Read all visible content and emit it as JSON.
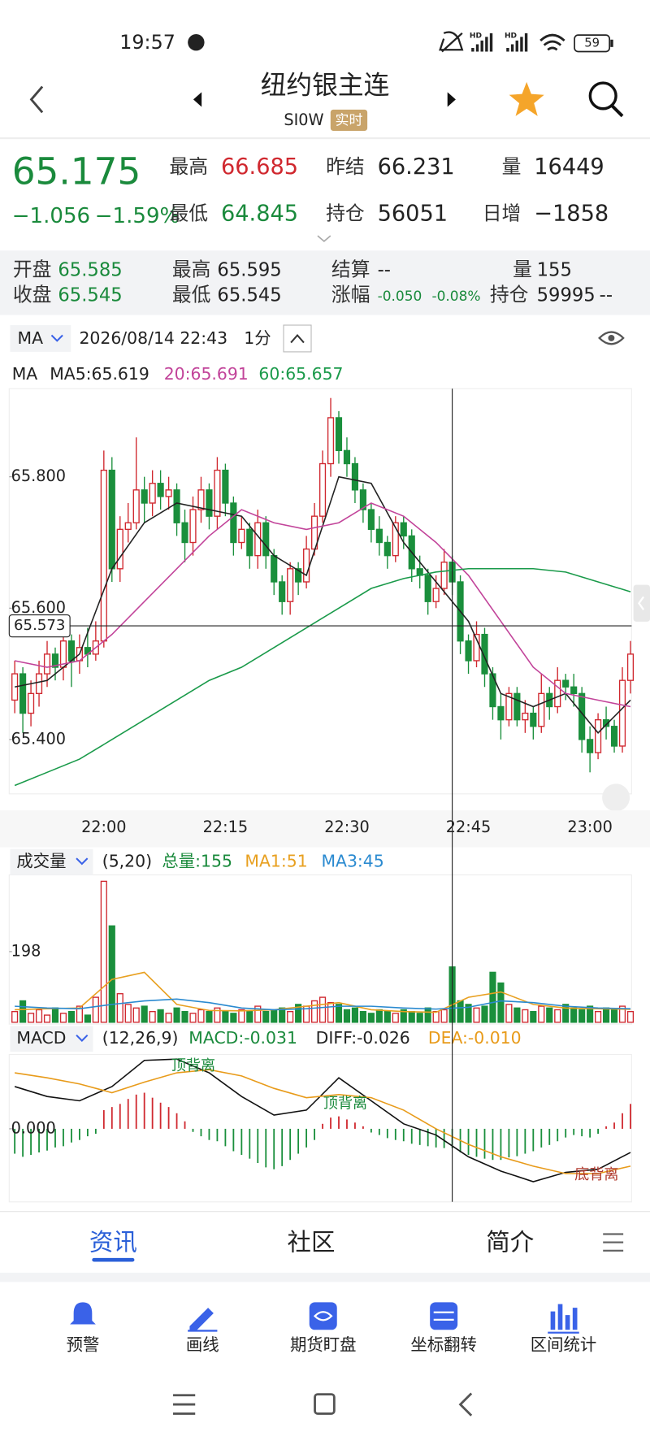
{
  "status_bar": {
    "time": "19:57",
    "hd": "HD",
    "battery": "59"
  },
  "header": {
    "title": "纽约银主连",
    "code": "SI0W",
    "badge": "实时"
  },
  "quote": {
    "price": "65.175",
    "change": "−1.056",
    "change_pct": "−1.59%",
    "items": [
      {
        "label": "最高",
        "value": "66.685"
      },
      {
        "label": "昨结",
        "value": "66.231"
      },
      {
        "label": "量",
        "value": "16449"
      },
      {
        "label": "最低",
        "value": "64.845"
      },
      {
        "label": "持仓",
        "value": "56051"
      },
      {
        "label": "日增",
        "value": "−1858"
      }
    ]
  },
  "detail": {
    "items": [
      {
        "label": "开盘",
        "value": "65.585"
      },
      {
        "label": "最高",
        "value": "65.595"
      },
      {
        "label": "结算",
        "value": "--"
      },
      {
        "label": "量",
        "value": "155"
      },
      {
        "label": "收盘",
        "value": "65.545"
      },
      {
        "label": "最低",
        "value": "65.545"
      },
      {
        "label": "涨幅",
        "value": "-0.050",
        "extra": "-0.08%"
      },
      {
        "label": "持仓",
        "value": "59995",
        "extra": "--"
      }
    ]
  },
  "toolbar": {
    "indicator": "MA",
    "datetime": "2026/08/14 22:43",
    "period": "1分"
  },
  "ma_legend": {
    "label": "MA",
    "ma5": "MA5:65.619",
    "ma20": "20:65.691",
    "ma60": "60:65.657"
  },
  "volume_header": {
    "indicator": "成交量",
    "params": "(5,20)",
    "total": "总量:155",
    "ma1": "MA1:51",
    "ma3": "MA3:45"
  },
  "macd_header": {
    "indicator": "MACD",
    "params": "(12,26,9)",
    "macd": "MACD:-0.031",
    "diff": "DIFF:-0.026",
    "dea": "DEA:-0.010"
  },
  "tabs": [
    "资讯",
    "社区",
    "简介"
  ],
  "tools": [
    "预警",
    "画线",
    "期货盯盘",
    "坐标翻转",
    "区间统计"
  ],
  "chart_data": [
    {
      "type": "candlestick",
      "categories": [
        null,
        null,
        null,
        null,
        null,
        null,
        null,
        null,
        null,
        null,
        null,
        "22:00",
        null,
        null,
        null,
        null,
        null,
        null,
        null,
        null,
        null,
        null,
        null,
        null,
        null,
        null,
        "22:15",
        null,
        null,
        null,
        null,
        null,
        null,
        null,
        null,
        null,
        null,
        null,
        null,
        null,
        null,
        "22:30",
        null,
        null,
        null,
        null,
        null,
        null,
        null,
        null,
        null,
        null,
        null,
        null,
        null,
        null,
        "22:45",
        null,
        null,
        null,
        null,
        null,
        null,
        null,
        null,
        null,
        null,
        null,
        null,
        null,
        null,
        "23:00",
        null,
        null,
        null,
        null,
        null
      ],
      "open": [
        65.46,
        65.5,
        65.44,
        65.47,
        65.5,
        65.53,
        65.51,
        65.55,
        65.52,
        65.54,
        65.53,
        65.55,
        65.81,
        65.66,
        65.72,
        65.73,
        65.78,
        65.76,
        65.79,
        65.77,
        65.78,
        65.73,
        65.7,
        65.75,
        65.78,
        65.74,
        65.81,
        65.76,
        65.7,
        65.72,
        65.68,
        65.73,
        65.68,
        65.64,
        65.61,
        65.66,
        65.64,
        65.69,
        65.74,
        65.82,
        65.89,
        65.84,
        65.82,
        65.78,
        65.75,
        65.72,
        65.7,
        65.68,
        65.73,
        65.71,
        65.66,
        65.65,
        65.61,
        65.63,
        65.67,
        65.64,
        65.55,
        65.52,
        65.56,
        65.5,
        65.45,
        65.43,
        65.47,
        65.43,
        65.44,
        65.42,
        65.47,
        65.45,
        65.49,
        65.48,
        65.47,
        65.4,
        65.38,
        65.43,
        65.42,
        65.39,
        65.49
      ],
      "high": [
        65.52,
        65.51,
        65.49,
        65.52,
        65.55,
        65.54,
        65.57,
        65.56,
        65.56,
        65.57,
        65.58,
        65.84,
        65.83,
        65.74,
        65.76,
        65.86,
        65.8,
        65.81,
        65.81,
        65.8,
        65.79,
        65.75,
        65.77,
        65.8,
        65.79,
        65.83,
        65.82,
        65.77,
        65.74,
        65.73,
        65.75,
        65.74,
        65.69,
        65.65,
        65.67,
        65.67,
        65.71,
        65.76,
        65.84,
        65.92,
        65.9,
        65.86,
        65.83,
        65.79,
        65.76,
        65.74,
        65.71,
        65.74,
        65.74,
        65.72,
        65.68,
        65.66,
        65.65,
        65.69,
        65.68,
        65.65,
        65.56,
        65.58,
        65.57,
        65.51,
        65.47,
        65.48,
        65.48,
        65.46,
        65.45,
        65.5,
        65.48,
        65.51,
        65.5,
        65.5,
        65.48,
        65.42,
        65.44,
        65.45,
        65.43,
        65.51,
        65.55
      ],
      "low": [
        65.44,
        65.41,
        65.42,
        65.45,
        65.48,
        65.49,
        65.49,
        65.48,
        65.5,
        65.51,
        65.52,
        65.54,
        65.64,
        65.64,
        65.7,
        65.72,
        65.73,
        65.74,
        65.75,
        65.75,
        65.71,
        65.67,
        65.68,
        65.73,
        65.72,
        65.72,
        65.74,
        65.68,
        65.69,
        65.66,
        65.66,
        65.66,
        65.62,
        65.59,
        65.59,
        65.62,
        65.63,
        65.68,
        65.73,
        65.8,
        65.82,
        65.8,
        65.76,
        65.73,
        65.7,
        65.68,
        65.66,
        65.67,
        65.69,
        65.64,
        65.63,
        65.59,
        65.6,
        65.62,
        65.62,
        65.53,
        65.5,
        65.51,
        65.48,
        65.43,
        65.4,
        65.42,
        65.42,
        65.41,
        65.4,
        65.41,
        65.43,
        65.44,
        65.46,
        65.45,
        65.38,
        65.35,
        65.37,
        65.4,
        65.38,
        65.38,
        65.47
      ],
      "close": [
        65.5,
        65.44,
        65.47,
        65.5,
        65.53,
        65.51,
        65.55,
        65.52,
        65.54,
        65.53,
        65.55,
        65.81,
        65.66,
        65.72,
        65.73,
        65.78,
        65.76,
        65.79,
        65.77,
        65.78,
        65.73,
        65.7,
        65.75,
        65.78,
        65.74,
        65.81,
        65.76,
        65.7,
        65.72,
        65.68,
        65.73,
        65.68,
        65.64,
        65.61,
        65.66,
        65.64,
        65.69,
        65.74,
        65.82,
        65.89,
        65.84,
        65.82,
        65.78,
        65.75,
        65.72,
        65.7,
        65.68,
        65.73,
        65.71,
        65.66,
        65.65,
        65.61,
        65.63,
        65.67,
        65.64,
        65.55,
        65.52,
        65.56,
        65.5,
        65.45,
        65.43,
        65.47,
        65.43,
        65.44,
        65.42,
        65.47,
        65.45,
        65.49,
        65.48,
        65.47,
        65.4,
        65.38,
        65.43,
        65.42,
        65.39,
        65.49,
        65.53
      ],
      "up_color": "#d0282f",
      "down_color": "#1a8f3c",
      "lines": [
        {
          "color": "#222222",
          "x": [
            0,
            4,
            8,
            12,
            16,
            20,
            24,
            28,
            32,
            36,
            40,
            44,
            48,
            52,
            56,
            60,
            64,
            68,
            72,
            76
          ],
          "values": [
            65.48,
            65.49,
            65.53,
            65.66,
            65.73,
            65.76,
            65.75,
            65.74,
            65.68,
            65.65,
            65.8,
            65.79,
            65.7,
            65.64,
            65.58,
            65.47,
            65.45,
            65.47,
            65.41,
            65.46
          ]
        },
        {
          "color": "#c2449a",
          "x": [
            0,
            4,
            8,
            12,
            16,
            20,
            24,
            28,
            32,
            36,
            40,
            44,
            48,
            52,
            56,
            60,
            64,
            68,
            72,
            76
          ],
          "values": [
            65.52,
            65.51,
            65.52,
            65.56,
            65.61,
            65.66,
            65.71,
            65.75,
            65.73,
            65.72,
            65.73,
            65.76,
            65.74,
            65.7,
            65.65,
            65.58,
            65.51,
            65.47,
            65.46,
            65.45
          ]
        },
        {
          "color": "#1a9a4a",
          "x": [
            0,
            4,
            8,
            12,
            16,
            20,
            24,
            28,
            32,
            36,
            40,
            44,
            48,
            52,
            56,
            60,
            64,
            68,
            72,
            76
          ],
          "values": [
            65.33,
            65.35,
            65.37,
            65.4,
            65.43,
            65.46,
            65.49,
            65.51,
            65.54,
            65.57,
            65.6,
            65.63,
            65.645,
            65.655,
            65.66,
            65.66,
            65.66,
            65.655,
            65.64,
            65.625
          ]
        }
      ],
      "crosshair": 65.573,
      "ylim": [
        65.32,
        65.93
      ],
      "yticks": [
        {
          "value": 65.4,
          "label": "65.400"
        },
        {
          "value": 65.6,
          "label": "65.600"
        },
        {
          "value": 65.8,
          "label": "65.800"
        }
      ]
    },
    {
      "type": "bar",
      "bar_colors": "candle",
      "values": [
        30,
        60,
        25,
        35,
        20,
        40,
        25,
        30,
        45,
        20,
        70,
        395,
        270,
        80,
        50,
        40,
        45,
        30,
        35,
        25,
        40,
        30,
        25,
        35,
        30,
        40,
        30,
        25,
        35,
        30,
        45,
        30,
        35,
        40,
        30,
        50,
        45,
        60,
        70,
        55,
        50,
        35,
        40,
        30,
        25,
        35,
        30,
        25,
        35,
        30,
        25,
        40,
        30,
        35,
        155,
        60,
        50,
        40,
        45,
        140,
        110,
        50,
        40,
        35,
        30,
        45,
        40,
        35,
        50,
        40,
        35,
        45,
        30,
        40,
        35,
        45,
        30
      ],
      "lines": [
        {
          "color": "#e8a020",
          "x": [
            0,
            4,
            8,
            12,
            16,
            20,
            24,
            28,
            32,
            36,
            40,
            44,
            48,
            52,
            56,
            60,
            64,
            68,
            72,
            76
          ],
          "values": [
            35,
            38,
            40,
            120,
            140,
            50,
            33,
            32,
            35,
            45,
            55,
            35,
            30,
            28,
            70,
            85,
            50,
            40,
            38,
            36
          ]
        },
        {
          "color": "#2a8ad0",
          "x": [
            0,
            4,
            8,
            12,
            16,
            20,
            24,
            28,
            32,
            36,
            40,
            44,
            48,
            52,
            56,
            60,
            64,
            68,
            72,
            76
          ],
          "values": [
            45,
            40,
            38,
            50,
            60,
            65,
            55,
            40,
            35,
            38,
            45,
            45,
            40,
            37,
            42,
            60,
            55,
            45,
            40,
            38
          ]
        }
      ],
      "ylim": [
        0,
        400
      ],
      "yticks": [
        198
      ]
    },
    {
      "type": "bar",
      "bar_colors": "sign",
      "up_color": "#d0282f",
      "down_color": "#1a8f3c",
      "values": [
        -0.04,
        -0.045,
        -0.042,
        -0.038,
        -0.035,
        -0.03,
        -0.028,
        -0.022,
        -0.018,
        -0.012,
        -0.008,
        0.03,
        0.035,
        0.04,
        0.048,
        0.055,
        0.058,
        0.05,
        0.042,
        0.035,
        0.025,
        0.012,
        -0.005,
        -0.012,
        -0.018,
        -0.02,
        -0.028,
        -0.036,
        -0.042,
        -0.048,
        -0.055,
        -0.062,
        -0.065,
        -0.06,
        -0.05,
        -0.04,
        -0.03,
        -0.018,
        0.008,
        0.018,
        0.02,
        0.015,
        0.01,
        0.004,
        -0.006,
        -0.01,
        -0.015,
        -0.018,
        -0.02,
        -0.024,
        -0.026,
        -0.028,
        -0.03,
        -0.031,
        -0.031,
        -0.038,
        -0.042,
        -0.045,
        -0.048,
        -0.05,
        -0.05,
        -0.046,
        -0.044,
        -0.04,
        -0.036,
        -0.03,
        -0.026,
        -0.02,
        -0.014,
        -0.01,
        -0.012,
        -0.014,
        -0.008,
        0.004,
        0.01,
        0.025,
        0.04
      ],
      "lines": [
        {
          "color": "#111111",
          "x": [
            0,
            4,
            8,
            12,
            16,
            20,
            24,
            28,
            32,
            36,
            40,
            44,
            48,
            52,
            56,
            60,
            64,
            68,
            72,
            76
          ],
          "values": [
            0.068,
            0.052,
            0.045,
            0.068,
            0.11,
            0.112,
            0.09,
            0.052,
            0.022,
            0.03,
            0.082,
            0.045,
            0.008,
            -0.01,
            -0.045,
            -0.068,
            -0.085,
            -0.07,
            -0.065,
            -0.038
          ]
        },
        {
          "color": "#e89b1a",
          "x": [
            0,
            4,
            8,
            12,
            16,
            20,
            24,
            28,
            32,
            36,
            40,
            44,
            48,
            52,
            56,
            60,
            64,
            68,
            72,
            76
          ],
          "values": [
            0.09,
            0.082,
            0.072,
            0.058,
            0.075,
            0.09,
            0.095,
            0.085,
            0.065,
            0.05,
            0.055,
            0.05,
            0.03,
            0.0,
            -0.025,
            -0.045,
            -0.06,
            -0.072,
            -0.072,
            -0.06
          ]
        }
      ],
      "annotations": [
        "顶背离",
        "顶背离",
        "底背离"
      ],
      "ylim": [
        -0.11,
        0.115
      ],
      "yticks": [
        {
          "value": 0,
          "label": "0.000"
        }
      ]
    }
  ]
}
